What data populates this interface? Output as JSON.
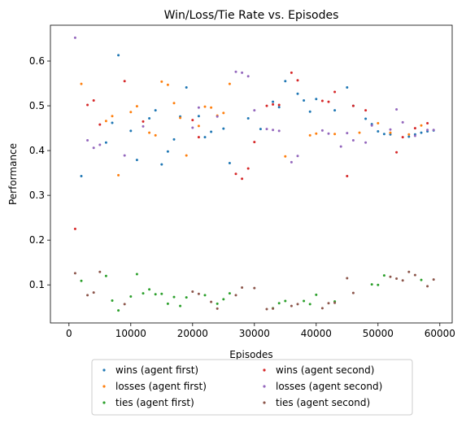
{
  "chart_data": {
    "type": "scatter",
    "title": "Win/Loss/Tie Rate vs. Episodes",
    "xlabel": "Episodes",
    "ylabel": "Performance",
    "xlim": [
      -3000,
      62000
    ],
    "ylim": [
      0.015,
      0.68
    ],
    "xticks": [
      0,
      10000,
      20000,
      30000,
      40000,
      50000,
      60000
    ],
    "xtick_labels": [
      "0",
      "10000",
      "20000",
      "30000",
      "40000",
      "50000",
      "60000"
    ],
    "yticks": [
      0.1,
      0.2,
      0.3,
      0.4,
      0.5,
      0.6
    ],
    "ytick_labels": [
      "0.1",
      "0.2",
      "0.3",
      "0.4",
      "0.5",
      "0.6"
    ],
    "grid": false,
    "legend_placement": "below the plot, two columns",
    "series": [
      {
        "name": "wins (agent first)",
        "color": "#1f77b4",
        "x": [
          2000,
          6000,
          7000,
          8000,
          10000,
          11000,
          13000,
          14000,
          15000,
          16000,
          17000,
          18000,
          19000,
          21000,
          22000,
          23000,
          25000,
          26000,
          29000,
          31000,
          33000,
          34000,
          35000,
          37000,
          38000,
          39000,
          40000,
          43000,
          45000,
          46000,
          48000,
          49000,
          50000,
          51000,
          52000,
          55000,
          56000,
          57000,
          58000,
          59000
        ],
        "y": [
          0.343,
          0.418,
          0.462,
          0.613,
          0.444,
          0.379,
          0.472,
          0.49,
          0.369,
          0.398,
          0.425,
          0.476,
          0.541,
          0.477,
          0.43,
          0.442,
          0.449,
          0.372,
          0.472,
          0.448,
          0.509,
          0.497,
          0.555,
          0.527,
          0.512,
          0.487,
          0.515,
          0.49,
          0.541,
          0.5,
          0.471,
          0.459,
          0.443,
          0.437,
          0.436,
          0.431,
          0.436,
          0.44,
          0.443,
          0.445
        ]
      },
      {
        "name": "losses (agent first)",
        "color": "#ff7f0e",
        "x": [
          2000,
          6000,
          7000,
          8000,
          10000,
          11000,
          13000,
          14000,
          15000,
          16000,
          17000,
          18000,
          19000,
          21000,
          22000,
          23000,
          24000,
          25000,
          26000,
          35000,
          39000,
          40000,
          43000,
          47000,
          50000,
          52000,
          55000,
          57000
        ],
        "y": [
          0.549,
          0.466,
          0.477,
          0.345,
          0.486,
          0.499,
          0.44,
          0.434,
          0.554,
          0.547,
          0.506,
          0.473,
          0.389,
          0.455,
          0.498,
          0.496,
          0.478,
          0.484,
          0.549,
          0.387,
          0.434,
          0.438,
          0.437,
          0.44,
          0.461,
          0.44,
          0.436,
          0.456
        ]
      },
      {
        "name": "ties (agent first)",
        "color": "#2ca02c",
        "x": [
          2000,
          6000,
          7000,
          8000,
          10000,
          11000,
          12000,
          13000,
          14000,
          15000,
          16000,
          17000,
          18000,
          19000,
          22000,
          24000,
          25000,
          26000,
          33000,
          34000,
          35000,
          38000,
          39000,
          40000,
          43000,
          49000,
          50000,
          51000,
          57000
        ],
        "y": [
          0.109,
          0.12,
          0.065,
          0.043,
          0.074,
          0.124,
          0.081,
          0.09,
          0.079,
          0.08,
          0.058,
          0.073,
          0.053,
          0.072,
          0.077,
          0.058,
          0.068,
          0.081,
          0.048,
          0.059,
          0.064,
          0.064,
          0.057,
          0.078,
          0.063,
          0.101,
          0.1,
          0.121,
          0.111
        ]
      },
      {
        "name": "wins (agent second)",
        "color": "#d62728",
        "x": [
          1000,
          3000,
          4000,
          5000,
          9000,
          12000,
          20000,
          21000,
          27000,
          28000,
          29000,
          30000,
          32000,
          33000,
          34000,
          36000,
          37000,
          41000,
          42000,
          43000,
          45000,
          46000,
          48000,
          53000,
          54000,
          56000,
          58000
        ],
        "y": [
          0.225,
          0.502,
          0.512,
          0.458,
          0.555,
          0.465,
          0.468,
          0.43,
          0.348,
          0.337,
          0.36,
          0.419,
          0.5,
          0.503,
          0.502,
          0.574,
          0.557,
          0.511,
          0.509,
          0.531,
          0.343,
          0.5,
          0.49,
          0.396,
          0.43,
          0.45,
          0.461
        ]
      },
      {
        "name": "losses (agent second)",
        "color": "#9467bd",
        "x": [
          1000,
          3000,
          4000,
          5000,
          9000,
          12000,
          20000,
          21000,
          24000,
          27000,
          28000,
          29000,
          30000,
          32000,
          33000,
          34000,
          36000,
          37000,
          41000,
          42000,
          44000,
          45000,
          46000,
          48000,
          49000,
          52000,
          53000,
          54000,
          56000,
          58000,
          59000
        ],
        "y": [
          0.652,
          0.423,
          0.406,
          0.413,
          0.389,
          0.454,
          0.451,
          0.496,
          0.476,
          0.576,
          0.574,
          0.566,
          0.49,
          0.448,
          0.446,
          0.444,
          0.374,
          0.388,
          0.445,
          0.438,
          0.409,
          0.439,
          0.423,
          0.418,
          0.456,
          0.447,
          0.492,
          0.463,
          0.433,
          0.446,
          0.446
        ]
      },
      {
        "name": "ties (agent second)",
        "color": "#8c564b",
        "x": [
          1000,
          3000,
          4000,
          5000,
          9000,
          20000,
          21000,
          23000,
          24000,
          27000,
          28000,
          30000,
          32000,
          33000,
          36000,
          37000,
          41000,
          42000,
          43000,
          45000,
          46000,
          52000,
          53000,
          54000,
          55000,
          56000,
          58000,
          59000
        ],
        "y": [
          0.126,
          0.077,
          0.083,
          0.129,
          0.057,
          0.085,
          0.08,
          0.062,
          0.047,
          0.077,
          0.094,
          0.093,
          0.046,
          0.047,
          0.053,
          0.057,
          0.048,
          0.059,
          0.06,
          0.115,
          0.082,
          0.118,
          0.114,
          0.11,
          0.129,
          0.122,
          0.097,
          0.112
        ]
      }
    ]
  }
}
